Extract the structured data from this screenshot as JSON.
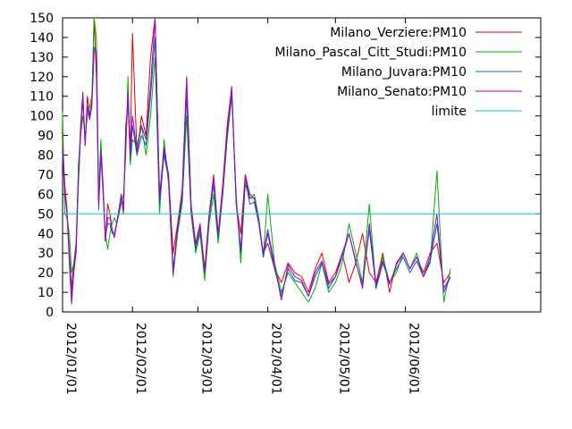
{
  "chart_data": {
    "type": "line",
    "title": "",
    "xlabel": "",
    "ylabel": "",
    "ylim": [
      0,
      150
    ],
    "xlim": [
      "2012/01/01",
      "2012/07/31"
    ],
    "yticks": [
      0,
      10,
      20,
      30,
      40,
      50,
      60,
      70,
      80,
      90,
      100,
      110,
      120,
      130,
      140,
      150
    ],
    "xticks": [
      "2012/01/01",
      "2012/02/01",
      "2012/03/01",
      "2012/04/01",
      "2012/05/01",
      "2012/06/01"
    ],
    "grid": false,
    "legend_position": "top-right",
    "series": [
      {
        "name": "Milano_Verziere:PM10",
        "color": "#e00000",
        "x": [
          "2012/01/01",
          "2012/01/02",
          "2012/01/03",
          "2012/01/04",
          "2012/01/05",
          "2012/01/06",
          "2012/01/07",
          "2012/01/08",
          "2012/01/09",
          "2012/01/10",
          "2012/01/11",
          "2012/01/12",
          "2012/01/13",
          "2012/01/14",
          "2012/01/15",
          "2012/01/16",
          "2012/01/17",
          "2012/01/18",
          "2012/01/19",
          "2012/01/20",
          "2012/01/21",
          "2012/01/22",
          "2012/01/23",
          "2012/01/24",
          "2012/01/25",
          "2012/01/26",
          "2012/01/27",
          "2012/01/28",
          "2012/01/29",
          "2012/01/30",
          "2012/01/31",
          "2012/02/01",
          "2012/02/03",
          "2012/02/05",
          "2012/02/07",
          "2012/02/09",
          "2012/02/11",
          "2012/02/13",
          "2012/02/15",
          "2012/02/17",
          "2012/02/19",
          "2012/02/21",
          "2012/02/23",
          "2012/02/25",
          "2012/02/27",
          "2012/02/29",
          "2012/03/02",
          "2012/03/04",
          "2012/03/06",
          "2012/03/08",
          "2012/03/10",
          "2012/03/12",
          "2012/03/14",
          "2012/03/16",
          "2012/03/18",
          "2012/03/20",
          "2012/03/22",
          "2012/03/24",
          "2012/03/26",
          "2012/03/28",
          "2012/03/30",
          "2012/04/01",
          "2012/04/04",
          "2012/04/07",
          "2012/04/10",
          "2012/04/13",
          "2012/04/16",
          "2012/04/19",
          "2012/04/22",
          "2012/04/25",
          "2012/04/28",
          "2012/05/01",
          "2012/05/04",
          "2012/05/07",
          "2012/05/10",
          "2012/05/13",
          "2012/05/16",
          "2012/05/19",
          "2012/05/22",
          "2012/05/25",
          "2012/05/28",
          "2012/05/31",
          "2012/06/03",
          "2012/06/06",
          "2012/06/09",
          "2012/06/12",
          "2012/06/15",
          "2012/06/18",
          "2012/06/21"
        ],
        "values": [
          88,
          65,
          52,
          30,
          12,
          25,
          35,
          70,
          95,
          112,
          85,
          110,
          100,
          108,
          150,
          120,
          55,
          85,
          65,
          36,
          55,
          50,
          42,
          38,
          45,
          52,
          60,
          50,
          95,
          106,
          82,
          142,
          80,
          100,
          90,
          130,
          150,
          60,
          82,
          70,
          30,
          45,
          62,
          120,
          55,
          35,
          45,
          22,
          50,
          70,
          40,
          65,
          95,
          115,
          55,
          40,
          70,
          60,
          58,
          45,
          30,
          35,
          22,
          15,
          25,
          20,
          18,
          10,
          22,
          30,
          15,
          20,
          30,
          15,
          25,
          40,
          20,
          15,
          30,
          10,
          25,
          30,
          22,
          28,
          20,
          30,
          35,
          15,
          20
        ],
        "stride_note": ""
      },
      {
        "name": "Milano_Pascal_Citt_Studi:PM10",
        "color": "#00b000",
        "x": [
          "2012/01/01",
          "2012/01/02",
          "2012/01/03",
          "2012/01/04",
          "2012/01/05",
          "2012/01/06",
          "2012/01/07",
          "2012/01/08",
          "2012/01/09",
          "2012/01/10",
          "2012/01/11",
          "2012/01/12",
          "2012/01/13",
          "2012/01/14",
          "2012/01/15",
          "2012/01/16",
          "2012/01/17",
          "2012/01/18",
          "2012/01/19",
          "2012/01/20",
          "2012/01/21",
          "2012/01/22",
          "2012/01/23",
          "2012/01/24",
          "2012/01/25",
          "2012/01/26",
          "2012/01/27",
          "2012/01/28",
          "2012/01/29",
          "2012/01/30",
          "2012/01/31",
          "2012/02/01",
          "2012/02/03",
          "2012/02/05",
          "2012/02/07",
          "2012/02/09",
          "2012/02/11",
          "2012/02/13",
          "2012/02/15",
          "2012/02/17",
          "2012/02/19",
          "2012/02/21",
          "2012/02/23",
          "2012/02/25",
          "2012/02/27",
          "2012/02/29",
          "2012/03/02",
          "2012/03/04",
          "2012/03/06",
          "2012/03/08",
          "2012/03/10",
          "2012/03/12",
          "2012/03/14",
          "2012/03/16",
          "2012/03/18",
          "2012/03/20",
          "2012/03/22",
          "2012/03/24",
          "2012/03/26",
          "2012/03/28",
          "2012/03/30",
          "2012/04/01",
          "2012/04/04",
          "2012/04/07",
          "2012/04/10",
          "2012/04/13",
          "2012/04/16",
          "2012/04/19",
          "2012/04/22",
          "2012/04/25",
          "2012/04/28",
          "2012/05/01",
          "2012/05/04",
          "2012/05/07",
          "2012/05/10",
          "2012/05/13",
          "2012/05/16",
          "2012/05/19",
          "2012/05/22",
          "2012/05/25",
          "2012/05/28",
          "2012/05/31",
          "2012/06/03",
          "2012/06/06",
          "2012/06/09",
          "2012/06/12",
          "2012/06/15",
          "2012/06/18",
          "2012/06/21"
        ],
        "values": [
          102,
          50,
          48,
          40,
          20,
          25,
          30,
          75,
          90,
          100,
          90,
          100,
          105,
          110,
          150,
          140,
          60,
          88,
          60,
          40,
          32,
          40,
          45,
          48,
          45,
          50,
          55,
          60,
          80,
          120,
          75,
          88,
          85,
          95,
          80,
          100,
          130,
          50,
          88,
          65,
          18,
          40,
          55,
          100,
          50,
          30,
          40,
          16,
          45,
          60,
          35,
          60,
          88,
          110,
          60,
          25,
          65,
          58,
          60,
          48,
          28,
          60,
          25,
          10,
          20,
          15,
          10,
          5,
          12,
          25,
          10,
          15,
          25,
          45,
          30,
          15,
          55,
          12,
          28,
          15,
          20,
          30,
          22,
          30,
          18,
          25,
          72,
          5,
          22
        ],
        "stride_note": ""
      },
      {
        "name": "Milano_Juvara:PM10",
        "color": "#0060c0",
        "x": [
          "2012/01/01",
          "2012/01/02",
          "2012/01/03",
          "2012/01/04",
          "2012/01/05",
          "2012/01/06",
          "2012/01/07",
          "2012/01/08",
          "2012/01/09",
          "2012/01/10",
          "2012/01/11",
          "2012/01/12",
          "2012/01/13",
          "2012/01/14",
          "2012/01/15",
          "2012/01/16",
          "2012/01/17",
          "2012/01/18",
          "2012/01/19",
          "2012/01/20",
          "2012/01/21",
          "2012/01/22",
          "2012/01/23",
          "2012/01/24",
          "2012/01/25",
          "2012/01/26",
          "2012/01/27",
          "2012/01/28",
          "2012/01/29",
          "2012/01/30",
          "2012/01/31",
          "2012/02/01",
          "2012/02/03",
          "2012/02/05",
          "2012/02/07",
          "2012/02/09",
          "2012/02/11",
          "2012/02/13",
          "2012/02/15",
          "2012/02/17",
          "2012/02/19",
          "2012/02/21",
          "2012/02/23",
          "2012/02/25",
          "2012/02/27",
          "2012/02/29",
          "2012/03/02",
          "2012/03/04",
          "2012/03/06",
          "2012/03/08",
          "2012/03/10",
          "2012/03/12",
          "2012/03/14",
          "2012/03/16",
          "2012/03/18",
          "2012/03/20",
          "2012/03/22",
          "2012/03/24",
          "2012/03/26",
          "2012/03/28",
          "2012/03/30",
          "2012/04/01",
          "2012/04/04",
          "2012/04/07",
          "2012/04/10",
          "2012/04/13",
          "2012/04/16",
          "2012/04/19",
          "2012/04/22",
          "2012/04/25",
          "2012/04/28",
          "2012/05/01",
          "2012/05/04",
          "2012/05/07",
          "2012/05/10",
          "2012/05/13",
          "2012/05/16",
          "2012/05/19",
          "2012/05/22",
          "2012/05/25",
          "2012/05/28",
          "2012/05/31",
          "2012/06/03",
          "2012/06/06",
          "2012/06/09",
          "2012/06/12",
          "2012/06/15",
          "2012/06/18",
          "2012/06/21"
        ],
        "values": [
          80,
          60,
          50,
          28,
          8,
          22,
          32,
          68,
          92,
          108,
          88,
          105,
          100,
          106,
          135,
          132,
          52,
          80,
          60,
          38,
          45,
          45,
          40,
          40,
          45,
          50,
          58,
          55,
          85,
          110,
          78,
          95,
          80,
          90,
          85,
          110,
          140,
          55,
          80,
          68,
          22,
          42,
          58,
          110,
          52,
          32,
          42,
          20,
          48,
          65,
          38,
          60,
          90,
          112,
          55,
          30,
          68,
          55,
          56,
          45,
          28,
          40,
          22,
          8,
          22,
          16,
          15,
          8,
          18,
          25,
          12,
          18,
          28,
          40,
          25,
          14,
          42,
          12,
          25,
          15,
          22,
          28,
          20,
          26,
          18,
          26,
          45,
          12,
          18
        ],
        "stride_note": ""
      },
      {
        "name": "Milano_Senato:PM10",
        "color": "#a000d0",
        "x": [
          "2012/01/01",
          "2012/01/02",
          "2012/01/03",
          "2012/01/04",
          "2012/01/05",
          "2012/01/06",
          "2012/01/07",
          "2012/01/08",
          "2012/01/09",
          "2012/01/10",
          "2012/01/11",
          "2012/01/12",
          "2012/01/13",
          "2012/01/14",
          "2012/01/15",
          "2012/01/16",
          "2012/01/17",
          "2012/01/18",
          "2012/01/19",
          "2012/01/20",
          "2012/01/21",
          "2012/01/22",
          "2012/01/23",
          "2012/01/24",
          "2012/01/25",
          "2012/01/26",
          "2012/01/27",
          "2012/01/28",
          "2012/01/29",
          "2012/01/30",
          "2012/01/31",
          "2012/02/01",
          "2012/02/03",
          "2012/02/05",
          "2012/02/07",
          "2012/02/09",
          "2012/02/11",
          "2012/02/13",
          "2012/02/15",
          "2012/02/17",
          "2012/02/19",
          "2012/02/21",
          "2012/02/23",
          "2012/02/25",
          "2012/02/27",
          "2012/02/29",
          "2012/03/02",
          "2012/03/04",
          "2012/03/06",
          "2012/03/08",
          "2012/03/10",
          "2012/03/12",
          "2012/03/14",
          "2012/03/16",
          "2012/03/18",
          "2012/03/20",
          "2012/03/22",
          "2012/03/24",
          "2012/03/26",
          "2012/03/28",
          "2012/03/30",
          "2012/04/01",
          "2012/04/04",
          "2012/04/07",
          "2012/04/10",
          "2012/04/13",
          "2012/04/16",
          "2012/04/19",
          "2012/04/22",
          "2012/04/25",
          "2012/04/28",
          "2012/05/01",
          "2012/05/04",
          "2012/05/07",
          "2012/05/10",
          "2012/05/13",
          "2012/05/16",
          "2012/05/19",
          "2012/05/22",
          "2012/05/25",
          "2012/05/28",
          "2012/05/31",
          "2012/06/03",
          "2012/06/06",
          "2012/06/09",
          "2012/06/12",
          "2012/06/15",
          "2012/06/18",
          "2012/06/21"
        ],
        "values": [
          85,
          62,
          50,
          25,
          4,
          20,
          30,
          65,
          90,
          110,
          85,
          105,
          98,
          105,
          133,
          133,
          55,
          82,
          62,
          36,
          48,
          48,
          42,
          38,
          46,
          52,
          60,
          52,
          88,
          112,
          80,
          100,
          82,
          95,
          88,
          115,
          150,
          58,
          84,
          70,
          20,
          44,
          60,
          118,
          54,
          34,
          44,
          20,
          50,
          68,
          40,
          62,
          92,
          114,
          56,
          32,
          70,
          58,
          58,
          46,
          30,
          42,
          24,
          6,
          24,
          18,
          16,
          8,
          20,
          26,
          14,
          18,
          30,
          40,
          26,
          12,
          45,
          14,
          26,
          14,
          24,
          30,
          22,
          28,
          18,
          28,
          50,
          10,
          18
        ],
        "stride_note": ""
      },
      {
        "name": "limite",
        "color": "#00c8d8",
        "x": [
          "2012/01/01",
          "2012/07/31"
        ],
        "values": [
          50,
          50
        ],
        "stride_note": ""
      }
    ]
  }
}
